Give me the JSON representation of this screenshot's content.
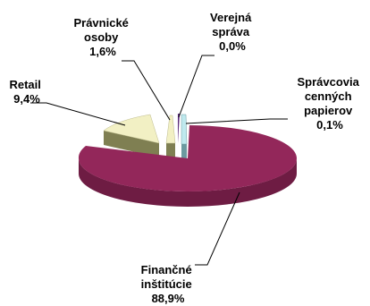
{
  "chart_data": {
    "type": "pie",
    "title": "",
    "three_d": true,
    "legend": "none",
    "slices": [
      {
        "name": "Finančné inštitúcie",
        "value": 88.9,
        "label": [
          "Finančné",
          "inštitúcie",
          "88,9%"
        ],
        "color": "#93275a",
        "side_color": "#6e1c43"
      },
      {
        "name": "Retail",
        "value": 9.4,
        "label": [
          "Retail",
          "9,4%"
        ],
        "color": "#f2f0c4",
        "side_color": "#7f7f52"
      },
      {
        "name": "Právnické osoby",
        "value": 1.6,
        "label": [
          "Právnické",
          "osoby",
          "1,6%"
        ],
        "color": "#f2f0c4",
        "side_color": "#7f7f52"
      },
      {
        "name": "Verejná správa",
        "value": 0.0,
        "label": [
          "Verejná",
          "správa",
          "0,0%"
        ],
        "color": "#5b2b7a",
        "side_color": "#3e1d54"
      },
      {
        "name": "Správcovia cenných papierov",
        "value": 0.1,
        "label": [
          "Správcovia",
          "cenných",
          "papierov",
          "0,1%"
        ],
        "color": "#bfe9ee",
        "side_color": "#6c9aa0"
      }
    ]
  }
}
